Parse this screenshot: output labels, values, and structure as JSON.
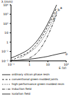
{
  "chart_data": {
    "type": "line",
    "log": true,
    "grid": false,
    "x_label": "E (V)",
    "y_label": "λ (mm)",
    "x": [
      0.1,
      0.3,
      1,
      3,
      10,
      30,
      100
    ],
    "xlim": [
      0.1,
      100
    ],
    "ylim": [
      0.01,
      10000
    ],
    "xticks": [
      {
        "value": 0.1,
        "label": "10⁻¹"
      },
      1,
      10,
      {
        "value": 100,
        "label": "10²"
      }
    ],
    "yticks": [
      {
        "value": 0.01,
        "label": "10⁻²"
      },
      {
        "value": 0.1,
        "label": "10⁻¹"
      },
      1,
      10,
      {
        "value": 100,
        "label": "10²"
      },
      {
        "value": 1000,
        "label": "10³"
      },
      {
        "value": 10000,
        "label": "10⁴"
      }
    ],
    "series": [
      {
        "name": "ordinary silicon phase resin",
        "color": "#000000",
        "line_style": "solid",
        "values": [
          0.02,
          0.05,
          0.2,
          2,
          100,
          10000,
          null
        ]
      },
      {
        "name": "conventional green-molded joints",
        "color": "#000000",
        "line_style": "dashed",
        "values": [
          0.01,
          0.03,
          0.1,
          1,
          50,
          5000,
          null
        ]
      },
      {
        "name": "high-performance green-molded resin",
        "color": "#000000",
        "line_style": "dotted",
        "values": [
          null,
          0.02,
          0.08,
          0.5,
          20,
          2000,
          null
        ]
      },
      {
        "name": "induction field",
        "color": "#000000",
        "line_style": "dashdot",
        "values": [
          null,
          null,
          0.02,
          0.1,
          5,
          1000,
          null
        ]
      },
      {
        "name": "isolation field",
        "color": "#000000",
        "line_style": "solid",
        "values": [
          0.01,
          0.012,
          0.015,
          0.02,
          0.03,
          0.05,
          0.08
        ]
      }
    ],
    "annotations": [
      {
        "text": "a",
        "x": 30,
        "y": 5000
      },
      {
        "text": "b",
        "x": 22,
        "y": 3000
      },
      {
        "text": "c",
        "x": 17,
        "y": 1500
      },
      {
        "text": "d",
        "x": 12,
        "y": 300
      },
      {
        "text": "e",
        "x": 60,
        "y": 0.05
      }
    ]
  }
}
